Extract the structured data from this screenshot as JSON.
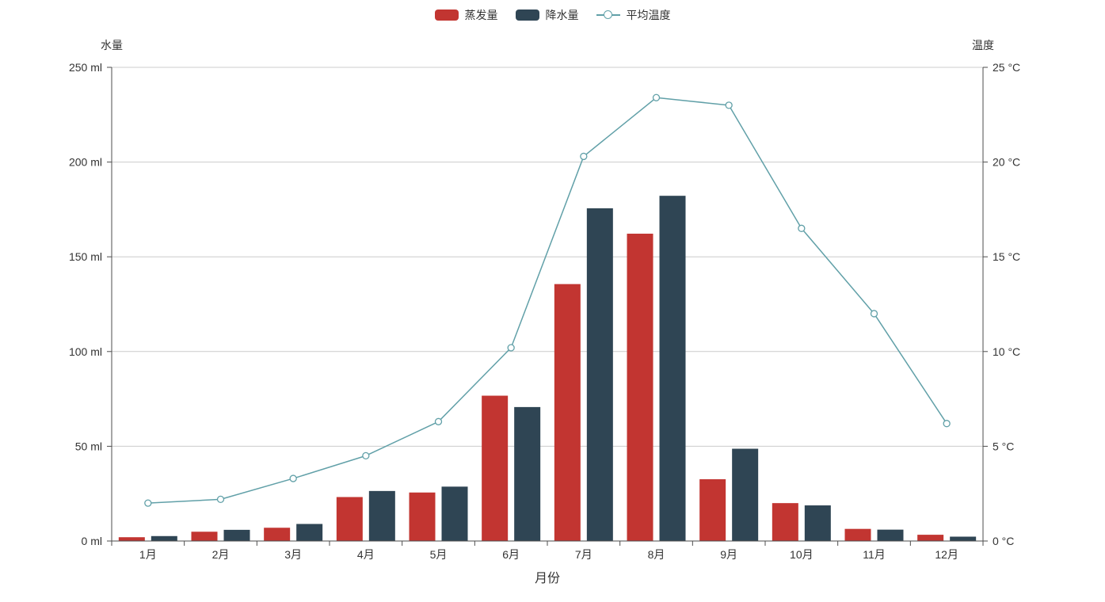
{
  "page": {
    "background": "#ffffff"
  },
  "legend": {
    "items": [
      {
        "key": "evaporation",
        "label": "蒸发量",
        "type": "bar",
        "color": "#c23531"
      },
      {
        "key": "precipitation",
        "label": "降水量",
        "type": "bar",
        "color": "#2f4554"
      },
      {
        "key": "avg-temperature",
        "label": "平均温度",
        "type": "line",
        "color": "#61a0a8"
      }
    ]
  },
  "chart_data": {
    "type": "bar",
    "subtype": "bar+line combo, dual y-axis",
    "categories": [
      "1月",
      "2月",
      "3月",
      "4月",
      "5月",
      "6月",
      "7月",
      "8月",
      "9月",
      "10月",
      "11月",
      "12月"
    ],
    "series": [
      {
        "name": "蒸发量",
        "key": "evaporation",
        "type": "bar",
        "color": "#c23531",
        "y_axis": "left",
        "values": [
          2.0,
          4.9,
          7.0,
          23.2,
          25.6,
          76.7,
          135.6,
          162.2,
          32.6,
          20.0,
          6.4,
          3.3
        ]
      },
      {
        "name": "降水量",
        "key": "precipitation",
        "type": "bar",
        "color": "#2f4554",
        "y_axis": "left",
        "values": [
          2.6,
          5.9,
          9.0,
          26.4,
          28.7,
          70.7,
          175.6,
          182.2,
          48.7,
          18.8,
          6.0,
          2.3
        ]
      },
      {
        "name": "平均温度",
        "key": "avg-temperature",
        "type": "line",
        "color": "#61a0a8",
        "y_axis": "right",
        "values": [
          2.0,
          2.2,
          3.3,
          4.5,
          6.3,
          10.2,
          20.3,
          23.4,
          23.0,
          16.5,
          12.0,
          6.2
        ]
      }
    ],
    "title": "",
    "xlabel": "月份",
    "y_left": {
      "name": "水量",
      "min": 0,
      "max": 250,
      "interval": 50,
      "unit": " ml",
      "tick_labels": [
        "0 ml",
        "50 ml",
        "100 ml",
        "150 ml",
        "200 ml",
        "250 ml"
      ]
    },
    "y_right": {
      "name": "温度",
      "min": 0,
      "max": 25,
      "interval": 5,
      "unit": " °C",
      "tick_labels": [
        "0 °C",
        "5 °C",
        "10 °C",
        "15 °C",
        "20 °C",
        "25 °C"
      ]
    },
    "grid": true,
    "legend_position": "top-center"
  },
  "style": {
    "bar_red": "#c23531",
    "bar_dark_slate": "#2f4554",
    "line_teal": "#61a0a8",
    "axis_line": "#4d4d4d",
    "tick_label": "#333333",
    "grid_line": "#cccccc",
    "point_fill": "#ffffff"
  }
}
